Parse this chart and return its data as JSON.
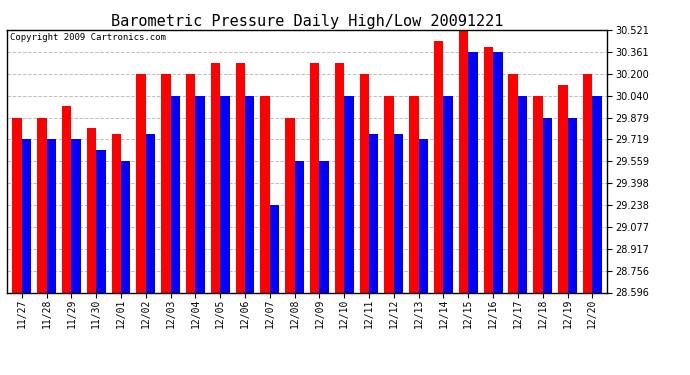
{
  "title": "Barometric Pressure Daily High/Low 20091221",
  "copyright": "Copyright 2009 Cartronics.com",
  "dates": [
    "11/27",
    "11/28",
    "11/29",
    "11/30",
    "12/01",
    "12/02",
    "12/03",
    "12/04",
    "12/05",
    "12/06",
    "12/07",
    "12/08",
    "12/09",
    "12/10",
    "12/11",
    "12/12",
    "12/13",
    "12/14",
    "12/15",
    "12/16",
    "12/17",
    "12/18",
    "12/19",
    "12/20"
  ],
  "highs": [
    29.879,
    29.879,
    29.96,
    29.8,
    29.76,
    30.2,
    30.2,
    30.2,
    30.28,
    30.28,
    30.04,
    29.879,
    30.28,
    30.28,
    30.2,
    30.04,
    30.04,
    30.44,
    30.521,
    30.4,
    30.2,
    30.04,
    30.12,
    30.2
  ],
  "lows": [
    29.719,
    29.719,
    29.719,
    29.64,
    29.559,
    29.76,
    30.04,
    30.04,
    30.04,
    30.04,
    29.238,
    29.559,
    29.559,
    30.04,
    29.76,
    29.76,
    29.719,
    30.04,
    30.361,
    30.361,
    30.04,
    29.879,
    29.879,
    30.04
  ],
  "high_color": "#ff0000",
  "low_color": "#0000ff",
  "bg_color": "#ffffff",
  "grid_color": "#c0c0c0",
  "ymin": 28.596,
  "ymax": 30.521,
  "yticks": [
    28.596,
    28.756,
    28.917,
    29.077,
    29.238,
    29.398,
    29.559,
    29.719,
    29.879,
    30.04,
    30.2,
    30.361,
    30.521
  ],
  "bar_width": 0.38,
  "title_fontsize": 11,
  "tick_fontsize": 7,
  "copyright_fontsize": 6.5
}
